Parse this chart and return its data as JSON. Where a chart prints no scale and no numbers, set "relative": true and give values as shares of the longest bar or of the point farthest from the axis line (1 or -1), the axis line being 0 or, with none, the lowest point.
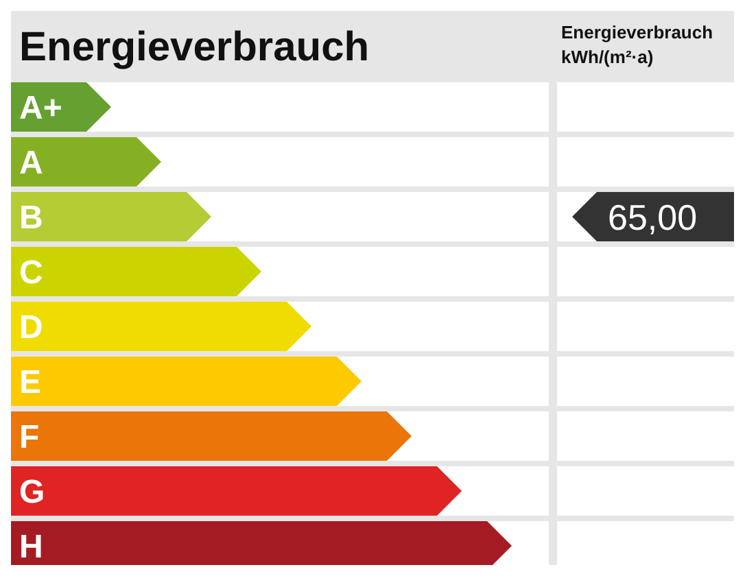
{
  "chart_data": {
    "type": "bar",
    "title": "Energieverbrauch",
    "orientation": "horizontal",
    "relative": true,
    "categories": [
      "A+",
      "A",
      "B",
      "C",
      "D",
      "E",
      "F",
      "G",
      "H"
    ],
    "values": [
      0.2,
      0.3,
      0.4,
      0.5,
      0.6,
      0.7,
      0.8,
      0.9,
      1
    ],
    "colors": [
      "#66a030",
      "#86b024",
      "#b6cc34",
      "#ccd400",
      "#f0dc00",
      "#fdca00",
      "#ea7508",
      "#e02323",
      "#a51b23"
    ],
    "annotations": [
      "Energieverbrauch kWh/(m²·a)",
      "65,00"
    ]
  }
}
